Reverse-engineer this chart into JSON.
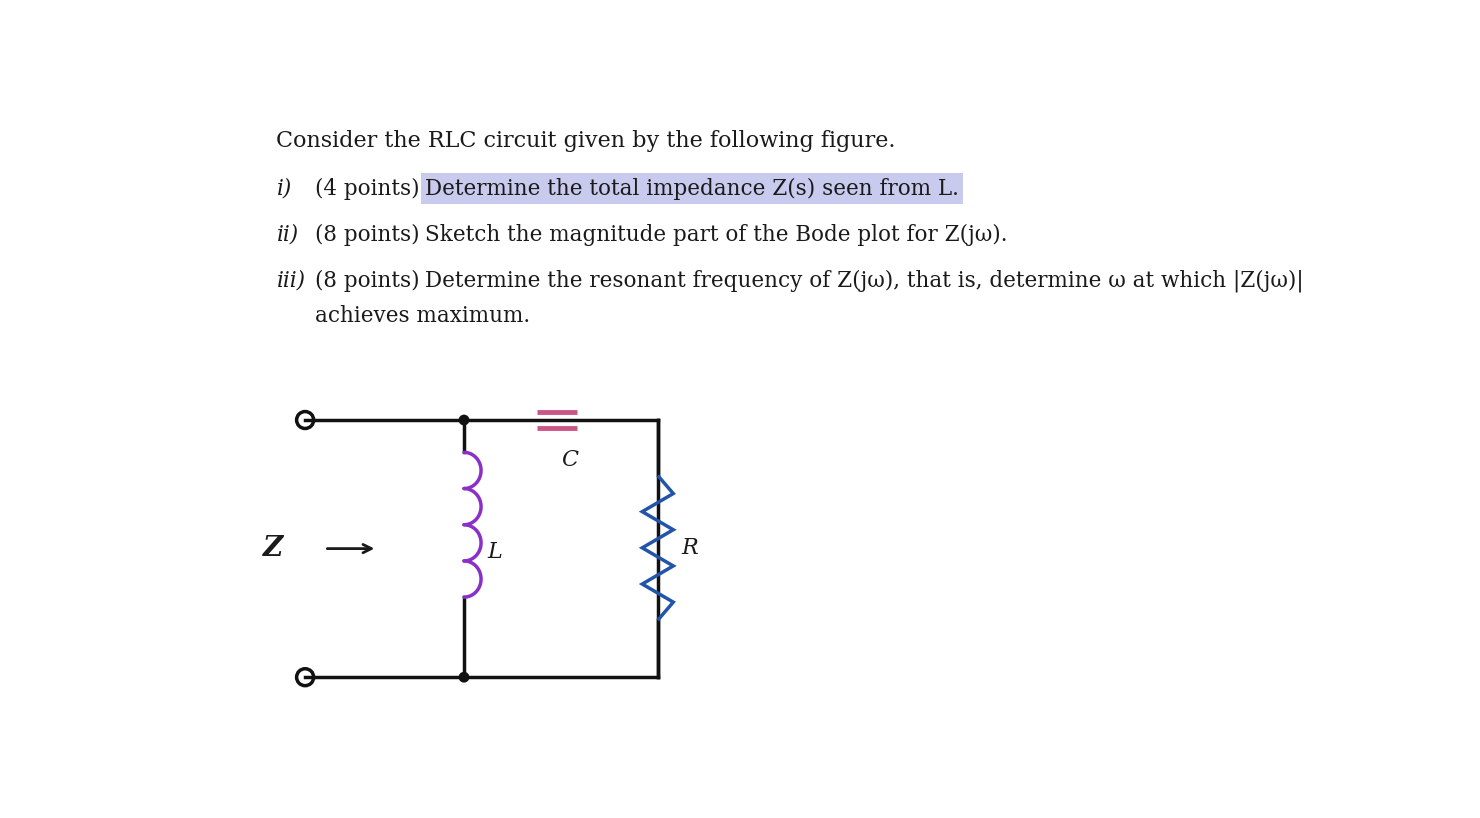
{
  "bg_color": "#ffffff",
  "title_text": "Consider the RLC circuit given by the following figure.",
  "line1_roman": "i)",
  "line1_points": "(4 points)",
  "line1_highlight": "Determine the total impedance Z(s) seen from L.",
  "line2_roman": "ii)",
  "line2_points": "(8 points)",
  "line2_text": "Sketch the magnitude part of the Bode plot for Z(jω).",
  "line3_roman": "iii)",
  "line3_points": "(8 points)",
  "line3_text": "Determine the resonant frequency of Z(jω), that is, determine ω at which |Z(jω)|",
  "line3_cont": "achieves maximum.",
  "highlight_color": "#c8caee",
  "text_color": "#1a1a1a",
  "circuit_wire_color": "#111111",
  "inductor_color": "#8B2FC9",
  "capacitor_color": "#CC5588",
  "resistor_color": "#2255AA",
  "font_size_title": 16,
  "font_size_body": 15.5,
  "italic_roman": true
}
